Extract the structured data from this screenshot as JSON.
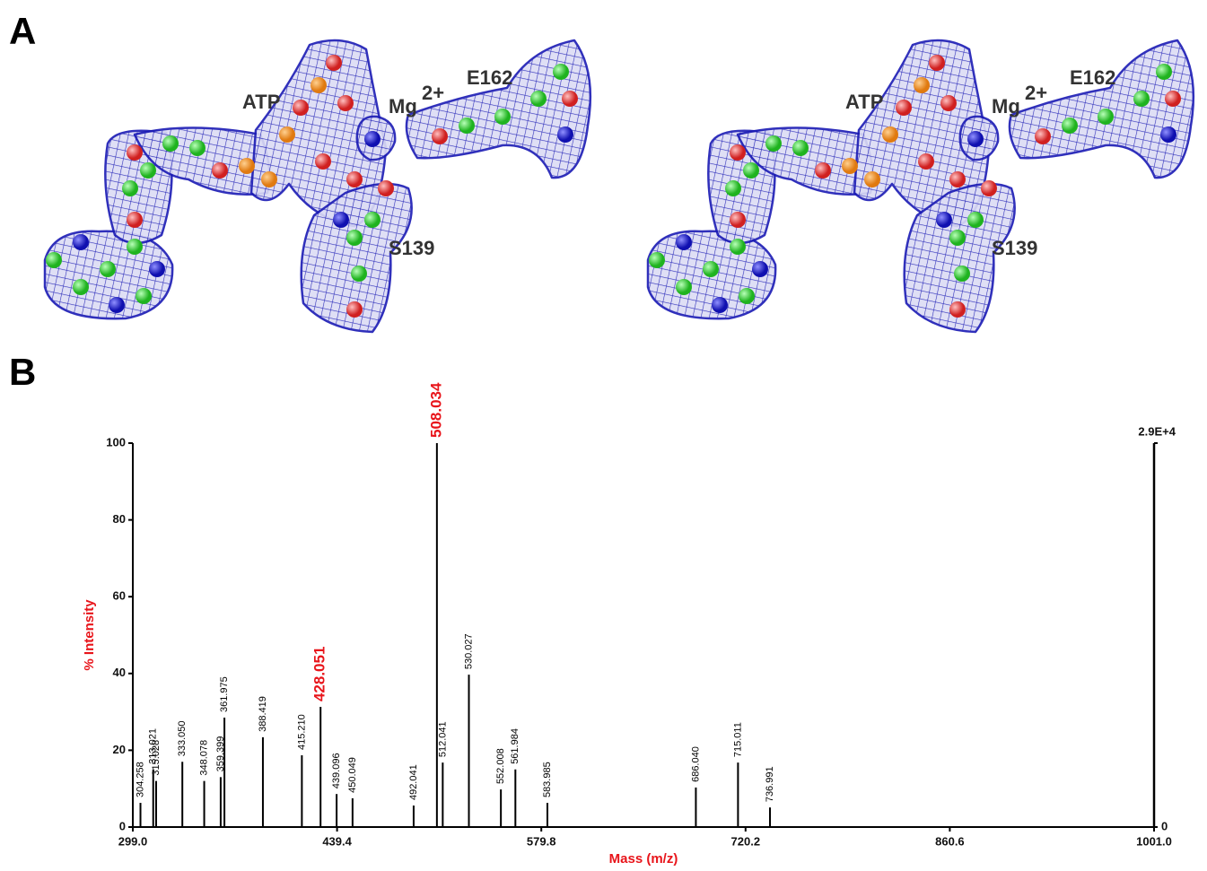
{
  "panel_a": {
    "label": "A",
    "annotations": {
      "atp": "ATP",
      "mg": "Mg",
      "mg_charge": "2+",
      "e162": "E162",
      "s139": "S139"
    }
  },
  "panel_b": {
    "label": "B"
  },
  "chart_data": {
    "type": "stem",
    "color": "#000000",
    "xlabel": "Mass (m/z)",
    "ylabel": "% Intensity",
    "axis_label_color": "#e8141a",
    "x": [
      304.258,
      313.021,
      315.028,
      333.05,
      348.078,
      359.399,
      361.975,
      388.419,
      415.21,
      428.051,
      439.096,
      450.049,
      492.041,
      508.034,
      512.041,
      530.027,
      552.008,
      561.984,
      583.985,
      686.04,
      715.011,
      736.991
    ],
    "values": [
      6.3,
      15,
      12,
      17,
      12,
      13,
      28.5,
      23.4,
      18.7,
      31.3,
      8.6,
      7.5,
      5.6,
      100,
      16.8,
      39.7,
      9.8,
      15,
      6.3,
      10.3,
      16.8,
      5.1
    ],
    "peak_labels": [
      "304.258",
      "313.021",
      "315.028",
      "333.050",
      "348.078",
      "359.399",
      "361.975",
      "388.419",
      "415.210",
      "428.051",
      "439.096",
      "450.049",
      "492.041",
      "508.034",
      "512.041",
      "530.027",
      "552.008",
      "561.984",
      "583.985",
      "686.040",
      "715.011",
      "736.991"
    ],
    "label_colors": [
      "#000000",
      "#000000",
      "#000000",
      "#000000",
      "#000000",
      "#000000",
      "#000000",
      "#000000",
      "#000000",
      "#e8141a",
      "#000000",
      "#000000",
      "#000000",
      "#e8141a",
      "#000000",
      "#000000",
      "#000000",
      "#000000",
      "#000000",
      "#000000",
      "#000000",
      "#000000"
    ],
    "xlim": [
      299,
      1001
    ],
    "xticks": [
      {
        "value": 299,
        "label": "299.0"
      },
      439.4,
      579.8,
      720.2,
      860.6,
      {
        "value": 1001,
        "label": "1001.0"
      }
    ],
    "ylim": [
      0,
      100
    ],
    "yticks": [
      0,
      20,
      40,
      60,
      80,
      100
    ],
    "y2lim": [
      0,
      29000
    ],
    "y2ticks": [
      0,
      {
        "value": 29000,
        "label": "2.9E+4"
      }
    ]
  }
}
